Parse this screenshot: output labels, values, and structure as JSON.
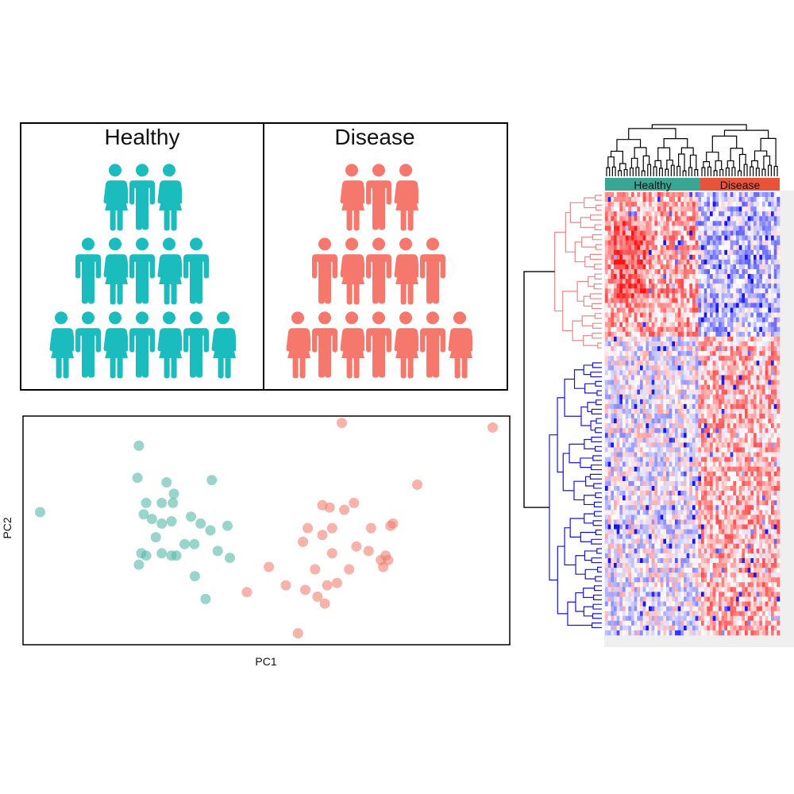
{
  "groups": {
    "healthy": {
      "label": "Healthy",
      "count": 15,
      "color": "#1bbcbd"
    },
    "disease": {
      "label": "Disease",
      "count": 15,
      "color": "#f6776c"
    }
  },
  "chart_data": [
    {
      "type": "scatter",
      "xlabel": "PC1",
      "ylabel": "PC2",
      "xlim": [
        0,
        100
      ],
      "ylim": [
        0,
        100
      ],
      "grid": false,
      "series": [
        {
          "color": "#57b9a8",
          "points": [
            [
              3.5,
              58
            ],
            [
              23.8,
              87
            ],
            [
              23.5,
              73
            ],
            [
              29.5,
              71
            ],
            [
              38.8,
              72
            ],
            [
              25.3,
              62
            ],
            [
              28.5,
              62
            ],
            [
              31,
              66
            ],
            [
              30.8,
              62
            ],
            [
              24.8,
              57
            ],
            [
              26.5,
              55
            ],
            [
              28.5,
              53
            ],
            [
              30.5,
              54
            ],
            [
              34.5,
              56
            ],
            [
              36.5,
              53
            ],
            [
              38.5,
              50
            ],
            [
              42,
              52
            ],
            [
              27.3,
              47
            ],
            [
              33.2,
              44
            ],
            [
              35.2,
              44
            ],
            [
              40,
              41
            ],
            [
              24.3,
              40
            ],
            [
              25.3,
              39
            ],
            [
              28.5,
              40
            ],
            [
              30.5,
              39
            ],
            [
              31.5,
              39
            ],
            [
              42.5,
              38
            ],
            [
              23.8,
              35
            ],
            [
              35.3,
              30
            ],
            [
              37.5,
              20
            ]
          ]
        },
        {
          "color": "#f27e6f",
          "points": [
            [
              65.5,
              97
            ],
            [
              96.5,
              95
            ],
            [
              81,
              70
            ],
            [
              68,
              62
            ],
            [
              61.5,
              61
            ],
            [
              63,
              60
            ],
            [
              66,
              59
            ],
            [
              58.5,
              51
            ],
            [
              63.5,
              51
            ],
            [
              71.5,
              51
            ],
            [
              75.5,
              52
            ],
            [
              76,
              53
            ],
            [
              61.5,
              48
            ],
            [
              57.5,
              45
            ],
            [
              63.5,
              40
            ],
            [
              71,
              41
            ],
            [
              68.5,
              43
            ],
            [
              74.5,
              39
            ],
            [
              73.5,
              37
            ],
            [
              50.5,
              34
            ],
            [
              60,
              33
            ],
            [
              67,
              33
            ],
            [
              75,
              37
            ],
            [
              74,
              34
            ],
            [
              64.5,
              27
            ],
            [
              62.5,
              26
            ],
            [
              54,
              26
            ],
            [
              58,
              24
            ],
            [
              46,
              23
            ],
            [
              60.5,
              21
            ],
            [
              62,
              18
            ],
            [
              56.5,
              5
            ]
          ]
        }
      ]
    },
    {
      "type": "heatmap",
      "column_annotations": [
        {
          "label": "Healthy",
          "color": "#3aa592"
        },
        {
          "label": "Disease",
          "color": "#e9533a"
        }
      ],
      "row_clusters": [
        {
          "color": "#e88787"
        },
        {
          "color": "#1414d6"
        }
      ],
      "color_scale": {
        "low": "#2222dd",
        "mid": "#ffffff",
        "high": "#dd1111"
      }
    }
  ]
}
